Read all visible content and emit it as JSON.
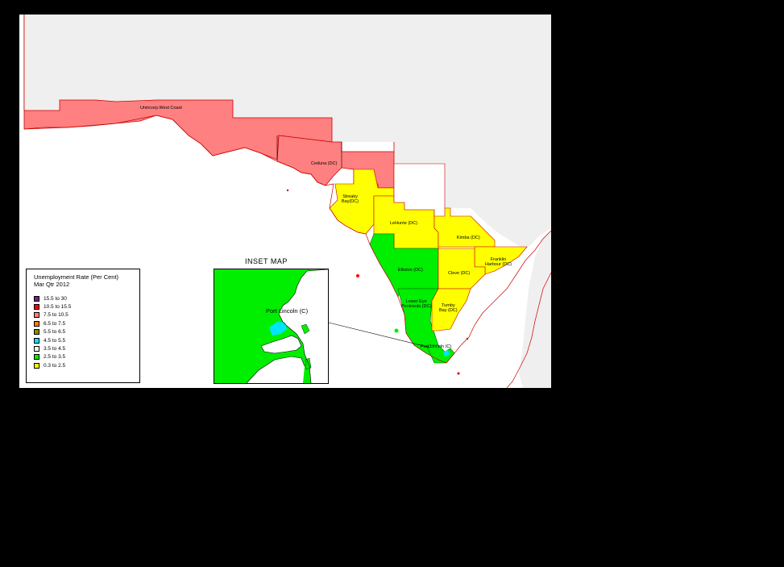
{
  "legend": {
    "title_line1": "Unemployment Rate (Per Cent)",
    "title_line2": "Mar Qtr 2012",
    "items": [
      {
        "range": "15.5 to 30",
        "color": "#7a1e8c"
      },
      {
        "range": "10.5 to 15.5",
        "color": "#ff0000"
      },
      {
        "range": "7.5 to 10.5",
        "color": "#ff8080"
      },
      {
        "range": "6.5 to 7.5",
        "color": "#ff7f00"
      },
      {
        "range": "5.5 to 6.5",
        "color": "#8b8b00"
      },
      {
        "range": "4.5 to 5.5",
        "color": "#00e5ff"
      },
      {
        "range": "3.5 to 4.5",
        "color": "#ffffff"
      },
      {
        "range": "2.5 to 3.5",
        "color": "#00ee00"
      },
      {
        "range": "0.3 to 2.5",
        "color": "#ffff00"
      }
    ]
  },
  "regions": {
    "west_coast": "Unincorp.West Coast",
    "ceduna": "Ceduna (DC)",
    "streaky_bay_1": "Streaky",
    "streaky_bay_2": "Bay(DC)",
    "le_hunte": "LeHunte (DC)",
    "kimba": "Kimba (DC)",
    "franklin_harbour_1": "Franklin",
    "franklin_harbour_2": "Harbour (DC)",
    "elliston": "Elliston (DC)",
    "cleve": "Cleve (DC)",
    "lower_eyre_1": "Lower Eye",
    "lower_eyre_2": "Peninsula (DC)",
    "tumby_bay_1": "Tumby",
    "tumby_bay_2": "Bay (DC)",
    "port_lincoln": "Port Lincoln (C)"
  },
  "inset": {
    "title": "INSET MAP",
    "label": "Port Lincoln (C)"
  }
}
